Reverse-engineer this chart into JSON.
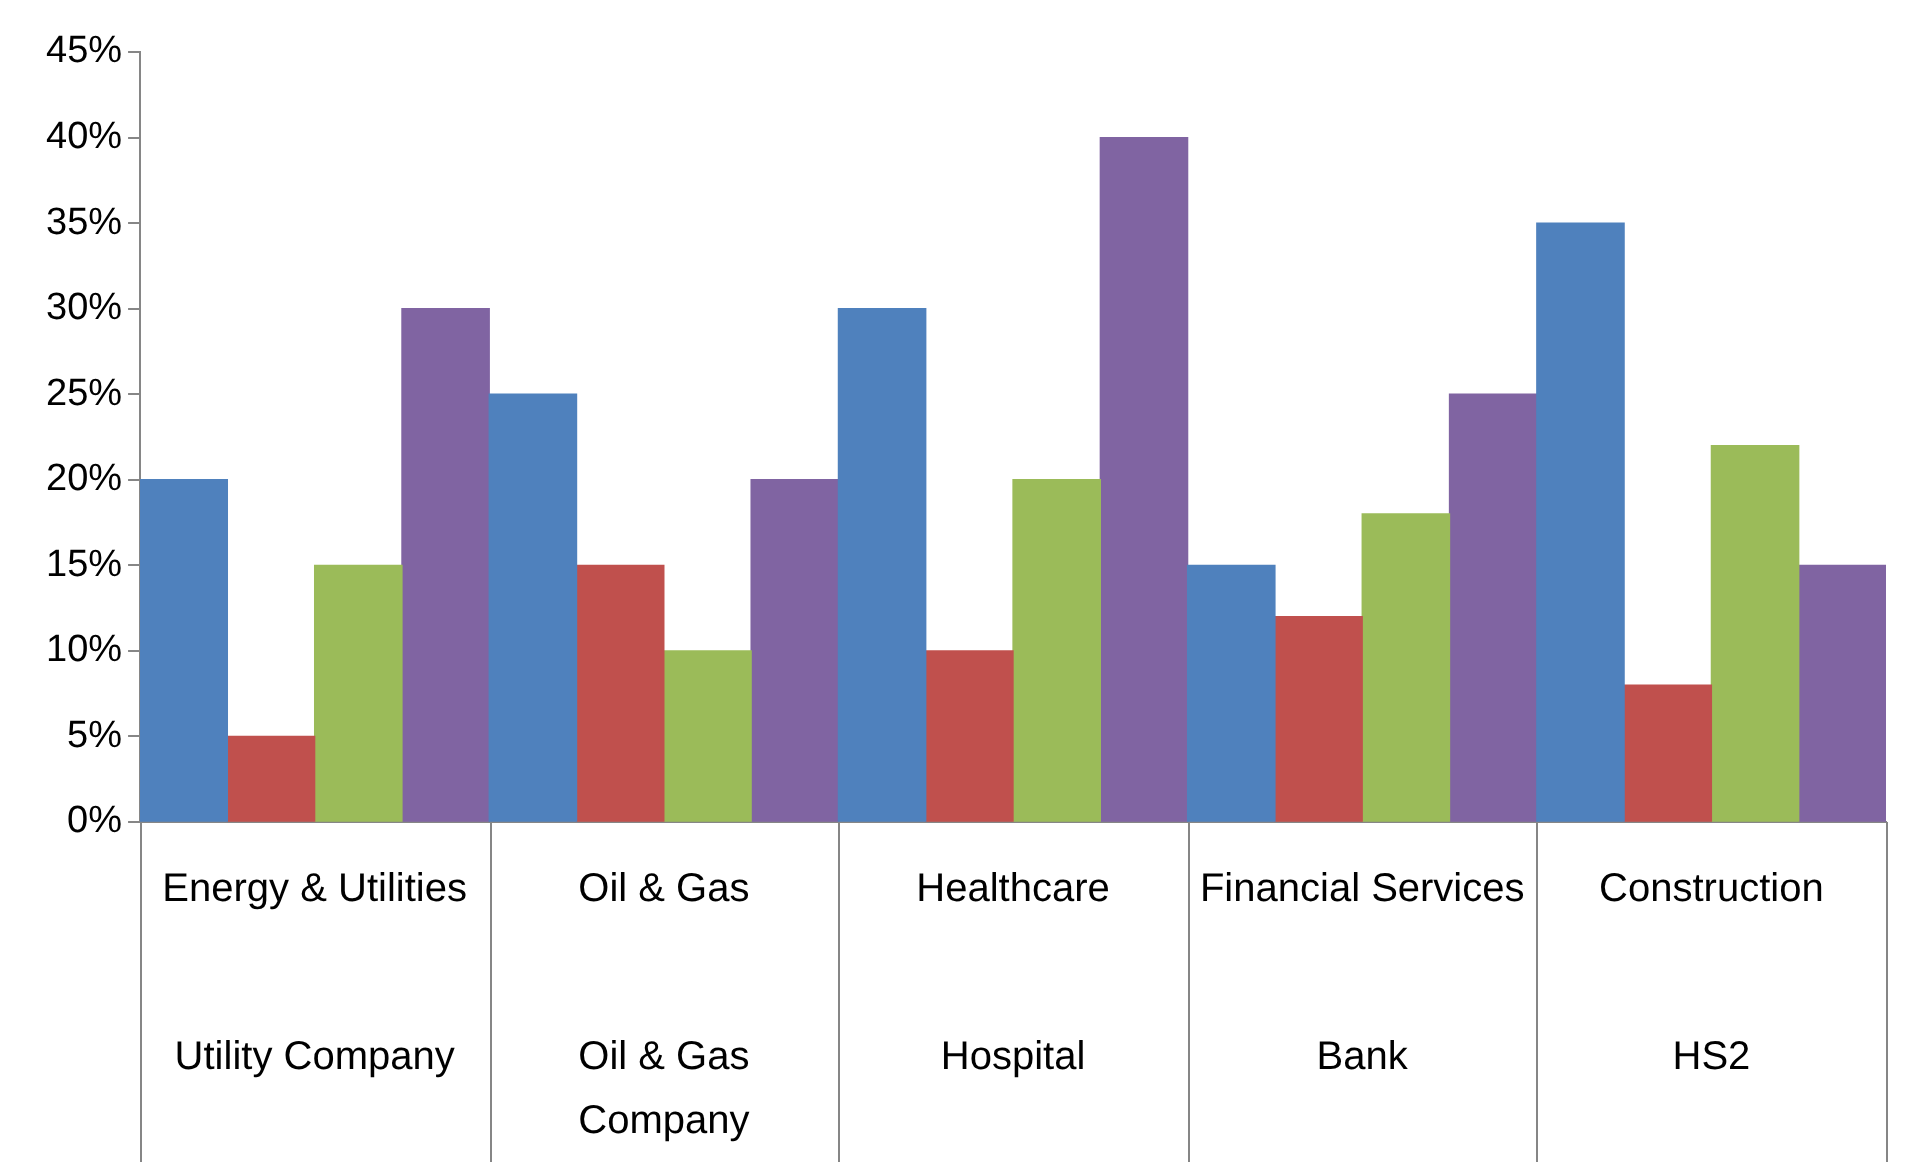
{
  "chart_data": {
    "type": "bar",
    "categories": [
      "Energy & Utilities",
      "Oil & Gas",
      "Healthcare",
      "Financial Services",
      "Construction"
    ],
    "series": [
      {
        "color": "#4f81bd",
        "values": [
          20,
          25,
          30,
          15,
          35
        ]
      },
      {
        "color": "#c0504d",
        "values": [
          5,
          15,
          10,
          12,
          8
        ]
      },
      {
        "color": "#9bbb59",
        "values": [
          15,
          10,
          20,
          18,
          22
        ]
      },
      {
        "color": "#8064a2",
        "values": [
          30,
          20,
          40,
          25,
          15
        ]
      }
    ],
    "annotations": [
      "Utility Company",
      "Oil & Gas Company",
      "Hospital",
      "Bank",
      "HS2"
    ],
    "ylim": [
      0,
      45
    ],
    "yticks": [
      {
        "value": 0,
        "label": "0%"
      },
      {
        "value": 5,
        "label": "5%"
      },
      {
        "value": 10,
        "label": "10%"
      },
      {
        "value": 15,
        "label": "15%"
      },
      {
        "value": 20,
        "label": "20%"
      },
      {
        "value": 25,
        "label": "25%"
      },
      {
        "value": 30,
        "label": "30%"
      },
      {
        "value": 35,
        "label": "35%"
      },
      {
        "value": 40,
        "label": "40%"
      },
      {
        "value": 45,
        "label": "45%"
      }
    ],
    "grid": false,
    "legend": false
  }
}
